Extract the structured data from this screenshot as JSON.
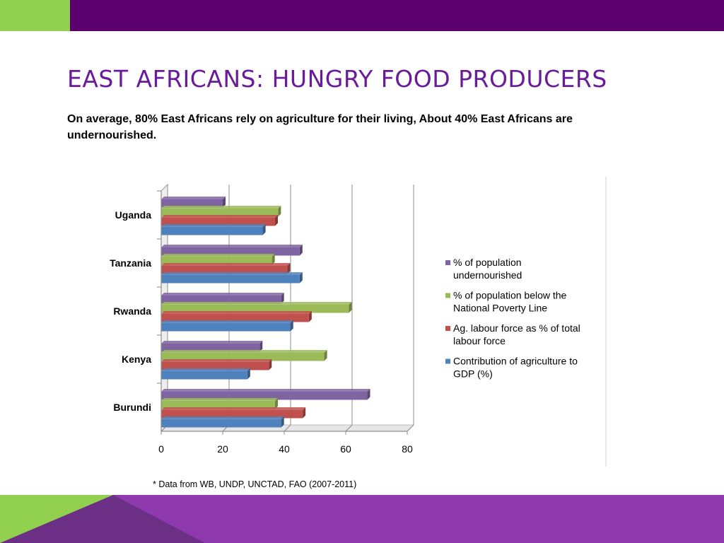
{
  "slide": {
    "title": "EAST AFRICANS: HUNGRY FOOD PRODUCERS",
    "subtitle": "On average, 80% East Africans rely on agriculture for their living, About 40% East Africans are undernourished.",
    "footnote": "* Data from WB, UNDP, UNCTAD, FAO (2007-2011)"
  },
  "colors": {
    "accent_green": "#92D050",
    "header_purple": "#5B006E",
    "title_purple": "#6A1B9A",
    "footer_purple": "#8E3AAE",
    "footer_dark_purple": "#6B2F86"
  },
  "chart_data": {
    "type": "bar",
    "orientation": "horizontal",
    "categories": [
      "Uganda",
      "Tanzania",
      "Rwanda",
      "Kenya",
      "Burundi"
    ],
    "series": [
      {
        "name": "% of population undernourished",
        "color": "#8064A2",
        "values": [
          20,
          45,
          39,
          32,
          67
        ]
      },
      {
        "name": "% of population below the National Poverty Line",
        "color": "#9BBB59",
        "values": [
          38,
          36,
          61,
          53,
          37
        ]
      },
      {
        "name": "Ag. labour force as % of total labour force",
        "color": "#C0504D",
        "values": [
          37,
          41,
          48,
          35,
          46
        ]
      },
      {
        "name": "Contribution of agriculture to GDP (%)",
        "color": "#4F81BD",
        "values": [
          33,
          45,
          42,
          28,
          39
        ]
      }
    ],
    "legend_lines": [
      [
        "% of population",
        "undernourished"
      ],
      [
        "% of population below the",
        "National Poverty Line"
      ],
      [
        "Ag. labour force as % of total",
        "labour force"
      ],
      [
        "Contribution of agriculture to",
        "GDP (%)"
      ]
    ],
    "xticks": [
      0,
      20,
      40,
      60,
      80
    ],
    "xlim": [
      0,
      80
    ],
    "grid": true,
    "legend_position": "right"
  }
}
